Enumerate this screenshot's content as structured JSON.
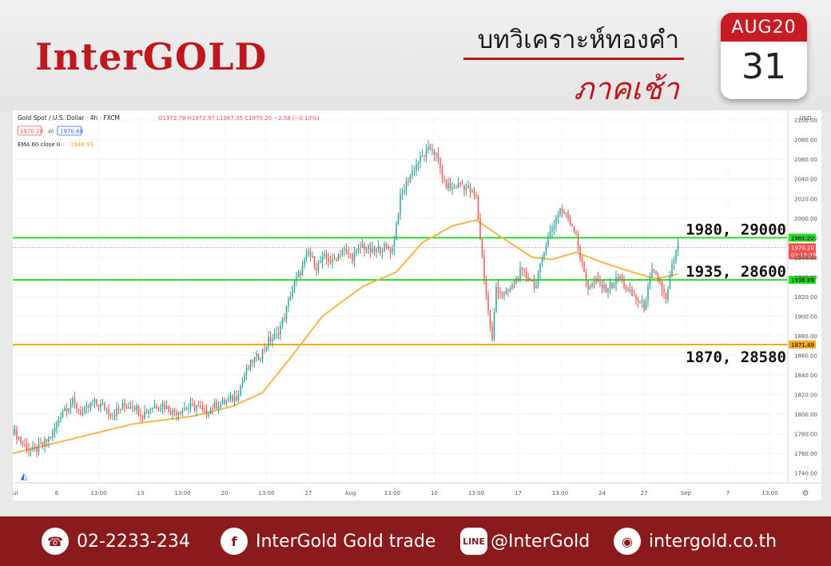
{
  "brand": {
    "logo_text": "InterGOLD"
  },
  "heading": {
    "title": "บทวิเคราะห์ทองคำ",
    "subtitle": "ภาคเช้า"
  },
  "calendar": {
    "month_year": "AUG20",
    "day": "31"
  },
  "symbol_header": {
    "name": "Gold Spot / U.S. Dollar · 4h · FXCM",
    "ohlc": "O1972.78 H1972.97 L1967.35 C1970.20 −2.58 (−0.13%)",
    "bid": "1970.20",
    "spread": "40",
    "ask": "1970.60",
    "indicator_name": "EMA 60 close 0",
    "indicator_value": "1948.93"
  },
  "chart_data": {
    "type": "line",
    "title": "Gold Spot / U.S. Dollar · 4h · FXCM",
    "currency": "USD",
    "ylim": [
      1730,
      2105
    ],
    "y_ticks": [
      "2100.00",
      "2080.00",
      "2060.00",
      "2040.00",
      "2020.00",
      "2000.00",
      "1980.00",
      "1960.00",
      "1940.00",
      "1920.00",
      "1900.00",
      "1880.00",
      "1860.00",
      "1840.00",
      "1820.00",
      "1800.00",
      "1780.00",
      "1760.00",
      "1740.00"
    ],
    "x_ticks": [
      "ul",
      "6",
      "13:00",
      "13",
      "13:00",
      "20",
      "13:00",
      "27",
      "Aug",
      "13:00",
      "10",
      "13:00",
      "17",
      "13:00",
      "24",
      "27",
      "Sep",
      "7",
      "13:00"
    ],
    "x_tick_positions_bars": [
      0,
      22,
      43,
      64,
      85,
      106,
      127,
      148,
      169,
      190,
      211,
      232,
      253,
      274,
      295,
      316,
      337,
      358,
      379
    ],
    "x_range_bars": [
      0,
      388
    ],
    "last_bar_index": 333,
    "price_series": [
      {
        "bar": 0,
        "price": 1784
      },
      {
        "bar": 5,
        "price": 1770
      },
      {
        "bar": 10,
        "price": 1762
      },
      {
        "bar": 15,
        "price": 1768
      },
      {
        "bar": 20,
        "price": 1780
      },
      {
        "bar": 25,
        "price": 1805
      },
      {
        "bar": 30,
        "price": 1812
      },
      {
        "bar": 35,
        "price": 1800
      },
      {
        "bar": 40,
        "price": 1812
      },
      {
        "bar": 45,
        "price": 1808
      },
      {
        "bar": 50,
        "price": 1800
      },
      {
        "bar": 55,
        "price": 1808
      },
      {
        "bar": 60,
        "price": 1810
      },
      {
        "bar": 65,
        "price": 1800
      },
      {
        "bar": 70,
        "price": 1808
      },
      {
        "bar": 75,
        "price": 1810
      },
      {
        "bar": 80,
        "price": 1802
      },
      {
        "bar": 86,
        "price": 1806
      },
      {
        "bar": 92,
        "price": 1808
      },
      {
        "bar": 96,
        "price": 1800
      },
      {
        "bar": 100,
        "price": 1808
      },
      {
        "bar": 106,
        "price": 1812
      },
      {
        "bar": 112,
        "price": 1818
      },
      {
        "bar": 116,
        "price": 1840
      },
      {
        "bar": 120,
        "price": 1855
      },
      {
        "bar": 124,
        "price": 1860
      },
      {
        "bar": 128,
        "price": 1875
      },
      {
        "bar": 132,
        "price": 1880
      },
      {
        "bar": 136,
        "price": 1900
      },
      {
        "bar": 140,
        "price": 1930
      },
      {
        "bar": 144,
        "price": 1945
      },
      {
        "bar": 148,
        "price": 1965
      },
      {
        "bar": 152,
        "price": 1950
      },
      {
        "bar": 156,
        "price": 1960
      },
      {
        "bar": 160,
        "price": 1955
      },
      {
        "bar": 165,
        "price": 1968
      },
      {
        "bar": 170,
        "price": 1960
      },
      {
        "bar": 175,
        "price": 1972
      },
      {
        "bar": 180,
        "price": 1965
      },
      {
        "bar": 185,
        "price": 1970
      },
      {
        "bar": 190,
        "price": 1968
      },
      {
        "bar": 194,
        "price": 2020
      },
      {
        "bar": 198,
        "price": 2040
      },
      {
        "bar": 202,
        "price": 2055
      },
      {
        "bar": 206,
        "price": 2065
      },
      {
        "bar": 210,
        "price": 2072
      },
      {
        "bar": 213,
        "price": 2058
      },
      {
        "bar": 216,
        "price": 2035
      },
      {
        "bar": 220,
        "price": 2030
      },
      {
        "bar": 224,
        "price": 2035
      },
      {
        "bar": 228,
        "price": 2030
      },
      {
        "bar": 232,
        "price": 2020
      },
      {
        "bar": 234,
        "price": 1980
      },
      {
        "bar": 236,
        "price": 1940
      },
      {
        "bar": 238,
        "price": 1905
      },
      {
        "bar": 240,
        "price": 1875
      },
      {
        "bar": 242,
        "price": 1930
      },
      {
        "bar": 246,
        "price": 1920
      },
      {
        "bar": 250,
        "price": 1930
      },
      {
        "bar": 254,
        "price": 1945
      },
      {
        "bar": 258,
        "price": 1940
      },
      {
        "bar": 262,
        "price": 1930
      },
      {
        "bar": 266,
        "price": 1970
      },
      {
        "bar": 270,
        "price": 1990
      },
      {
        "bar": 274,
        "price": 2010
      },
      {
        "bar": 278,
        "price": 2000
      },
      {
        "bar": 282,
        "price": 1985
      },
      {
        "bar": 284,
        "price": 1960
      },
      {
        "bar": 288,
        "price": 1930
      },
      {
        "bar": 292,
        "price": 1935
      },
      {
        "bar": 296,
        "price": 1928
      },
      {
        "bar": 300,
        "price": 1932
      },
      {
        "bar": 304,
        "price": 1940
      },
      {
        "bar": 308,
        "price": 1925
      },
      {
        "bar": 312,
        "price": 1918
      },
      {
        "bar": 316,
        "price": 1910
      },
      {
        "bar": 320,
        "price": 1945
      },
      {
        "bar": 324,
        "price": 1935
      },
      {
        "bar": 327,
        "price": 1915
      },
      {
        "bar": 330,
        "price": 1950
      },
      {
        "bar": 333,
        "price": 1972
      }
    ],
    "ema_series": {
      "name": "EMA 60 close 0",
      "points": [
        {
          "bar": 0,
          "price": 1760
        },
        {
          "bar": 30,
          "price": 1775
        },
        {
          "bar": 60,
          "price": 1790
        },
        {
          "bar": 90,
          "price": 1798
        },
        {
          "bar": 110,
          "price": 1808
        },
        {
          "bar": 125,
          "price": 1822
        },
        {
          "bar": 140,
          "price": 1860
        },
        {
          "bar": 155,
          "price": 1900
        },
        {
          "bar": 175,
          "price": 1930
        },
        {
          "bar": 192,
          "price": 1945
        },
        {
          "bar": 205,
          "price": 1975
        },
        {
          "bar": 220,
          "price": 1992
        },
        {
          "bar": 232,
          "price": 1998
        },
        {
          "bar": 245,
          "price": 1980
        },
        {
          "bar": 260,
          "price": 1960
        },
        {
          "bar": 270,
          "price": 1958
        },
        {
          "bar": 282,
          "price": 1965
        },
        {
          "bar": 295,
          "price": 1955
        },
        {
          "bar": 310,
          "price": 1945
        },
        {
          "bar": 322,
          "price": 1938
        },
        {
          "bar": 333,
          "price": 1943
        }
      ]
    },
    "level_lines": [
      {
        "price": 1980,
        "color": "#22e022",
        "axis_label": "1981.22",
        "annotation": "1980, 29000"
      },
      {
        "price": 1937,
        "color": "#22e022",
        "axis_label": "1936.89",
        "annotation": "1935, 28600"
      },
      {
        "price": 1871,
        "color": "#f5a623",
        "axis_label": "1871.49",
        "annotation": "1870, 28580"
      }
    ],
    "last_price": {
      "price": 1970.2,
      "label": "1970.20",
      "countdown": "02:15:35",
      "color": "#ef5350"
    },
    "colors": {
      "up": "#26a69a",
      "down": "#ef5350",
      "ema": "#f5b74a"
    }
  },
  "footer": {
    "phone": "02-2233-234",
    "facebook": "InterGold Gold trade",
    "line": "@InterGold",
    "website": "intergold.co.th",
    "line_icon_text": "LINE"
  }
}
